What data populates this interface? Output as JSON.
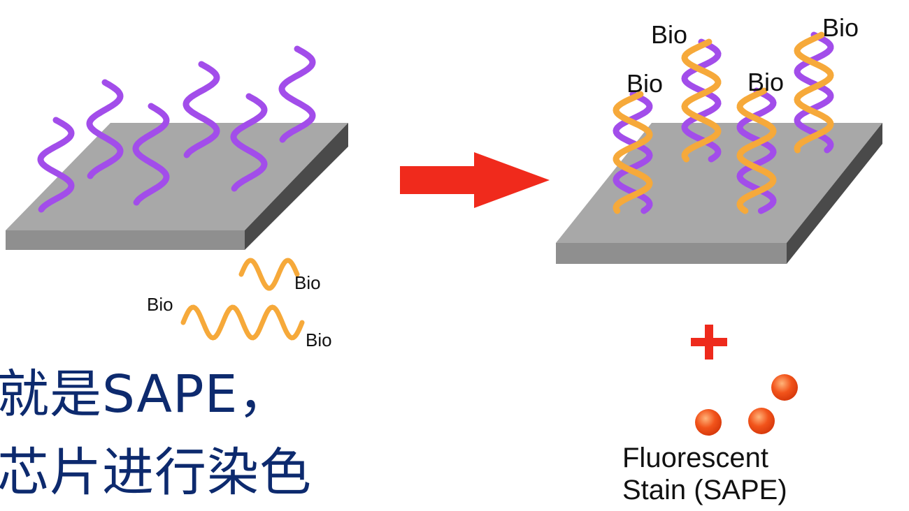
{
  "labels": {
    "bio": "Bio",
    "plus": "+",
    "stain_line1": "Fluorescent",
    "stain_line2": "Stain (SAPE)"
  },
  "subtitle": {
    "line1": "就是SAPE，",
    "line2": "芯片进行染色"
  },
  "colors": {
    "probe_purple": "#a24dea",
    "target_orange": "#f6a93a",
    "slide_top": "#a8a8a8",
    "slide_side": "#4a4a4a",
    "slide_front": "#8f8f8f",
    "arrow_red": "#f02a1c",
    "plus_red": "#ee2a1c",
    "bead_orange": "#f2541b",
    "subtitle_navy": "#0d2a6e"
  },
  "icons": {
    "arrow": "right-arrow-icon",
    "bead": "fluorescent-bead-icon"
  }
}
